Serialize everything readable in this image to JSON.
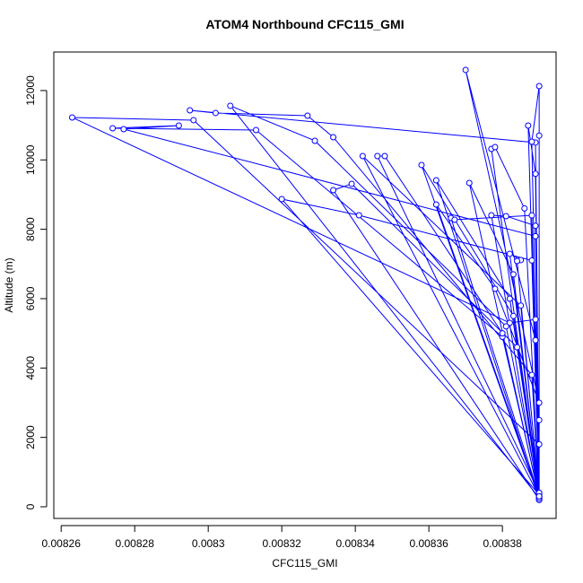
{
  "chart_data": {
    "type": "line",
    "title": "ATOM4 Northbound CFC115_GMI",
    "x_label": "CFC115_GMI",
    "y_label": "Altitude (m)",
    "color": "#0000ff",
    "markers": true,
    "x": [
      0.00839,
      0.00839,
      0.008389,
      0.008382,
      0.008263,
      0.008296,
      0.00839,
      0.008389,
      0.008277,
      0.008292,
      0.008274,
      0.008313,
      0.00838,
      0.00839,
      0.008389,
      0.008295,
      0.008302,
      0.008327,
      0.008334,
      0.008388,
      0.00839,
      0.008306,
      0.008329,
      0.008381,
      0.00839,
      0.00832,
      0.008341,
      0.008388,
      0.00839,
      0.008334,
      0.008339,
      0.008384,
      0.00839,
      0.008342,
      0.008385,
      0.00839,
      0.008346,
      0.008348,
      0.00838,
      0.00839,
      0.008358,
      0.008383,
      0.00839,
      0.008362,
      0.008382,
      0.00839,
      0.008362,
      0.008378,
      0.00839,
      0.00837,
      0.008389,
      0.00839,
      0.008366,
      0.008367,
      0.008388,
      0.00839,
      0.008371,
      0.008383,
      0.00839,
      0.008377,
      0.008378,
      0.008386,
      0.00839,
      0.008377,
      0.008381,
      0.008389,
      0.00839,
      0.008387,
      0.008389,
      0.00839,
      0.008388,
      0.00839,
      0.00839,
      0.00839,
      0.008382,
      0.008385,
      0.008384,
      0.00839
    ],
    "values": [
      200,
      2500,
      5400,
      5300,
      11223,
      11146,
      1800,
      7800,
      10887,
      10990,
      10913,
      10861,
      4900,
      300,
      10500,
      11430,
      11353,
      11275,
      10654,
      3800,
      250,
      11560,
      10551,
      5200,
      350,
      8870,
      8404,
      7100,
      200,
      9128,
      9310,
      4600,
      300,
      10111,
      5800,
      400,
      10111,
      10111,
      5000,
      250,
      9853,
      5500,
      200,
      9413,
      6000,
      300,
      8715,
      6284,
      3000,
      12594,
      4800,
      300,
      8327,
      8275,
      8400,
      250,
      9335,
      6700,
      350,
      10318,
      10370,
      8600,
      200,
      8404,
      8379,
      8100,
      300,
      10990,
      9600,
      250,
      10525,
      12128,
      10700,
      400,
      7293,
      7112,
      7086,
      300
    ],
    "xlim": [
      0.008258,
      0.0083946
    ],
    "ylim": [
      -336,
      13110
    ],
    "xticks": [
      0.00826,
      0.00828,
      0.0083,
      0.00832,
      0.00834,
      0.00836,
      0.00838
    ],
    "yticks": [
      0,
      2000,
      4000,
      6000,
      8000,
      10000,
      12000
    ]
  }
}
